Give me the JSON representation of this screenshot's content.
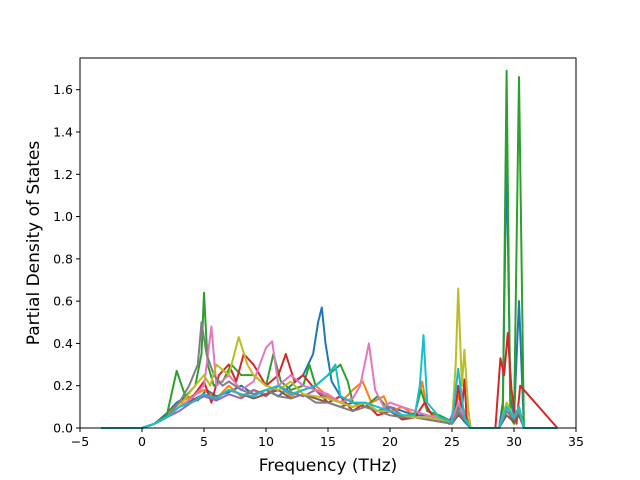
{
  "chart_data": {
    "type": "line",
    "xlabel": "Frequency (THz)",
    "ylabel": "Partial Density of States",
    "xlim": [
      -5,
      35
    ],
    "ylim": [
      0,
      1.75
    ],
    "xticks": [
      -5,
      0,
      5,
      10,
      15,
      20,
      25,
      30,
      35
    ],
    "yticks": [
      0.0,
      0.2,
      0.4,
      0.6,
      0.8,
      1.0,
      1.2,
      1.4,
      1.6
    ],
    "xtick_labels": [
      "−5",
      "0",
      "5",
      "10",
      "15",
      "20",
      "25",
      "30",
      "35"
    ],
    "ytick_labels": [
      "0.0",
      "0.2",
      "0.4",
      "0.6",
      "0.8",
      "1.0",
      "1.2",
      "1.4",
      "1.6"
    ],
    "grid": false,
    "legend": "none",
    "series": [
      {
        "color": "#1f77b4",
        "x": [
          -3.3,
          0,
          1.0,
          2.0,
          2.8,
          3.6,
          4.5,
          5.2,
          6.0,
          7.0,
          8.0,
          9.0,
          10.0,
          11.0,
          12.0,
          13.0,
          13.8,
          14.2,
          14.5,
          14.8,
          15.3,
          16.0,
          17.0,
          18.0,
          19.0,
          20.0,
          21.0,
          22.0,
          23.0,
          24.0,
          24.8,
          25.3,
          25.6,
          26.0,
          26.5,
          28.8,
          29.1,
          29.4,
          29.7,
          30.0,
          30.4,
          30.8,
          33.5
        ],
        "y": [
          0,
          0,
          0.02,
          0.07,
          0.12,
          0.15,
          0.13,
          0.18,
          0.15,
          0.17,
          0.2,
          0.16,
          0.18,
          0.15,
          0.2,
          0.25,
          0.35,
          0.5,
          0.57,
          0.4,
          0.22,
          0.15,
          0.12,
          0.1,
          0.08,
          0.1,
          0.08,
          0.06,
          0.06,
          0.04,
          0.02,
          0.12,
          0.06,
          0.03,
          0,
          0,
          0.12,
          1.3,
          0.15,
          0.05,
          0.6,
          0,
          0
        ]
      },
      {
        "color": "#ff7f0e",
        "x": [
          -3.3,
          0,
          1.0,
          2.0,
          3.0,
          4.0,
          5.0,
          6.0,
          7.0,
          8.0,
          9.0,
          10.0,
          11.0,
          12.0,
          13.0,
          14.0,
          15.0,
          16.0,
          17.0,
          17.8,
          18.5,
          19.5,
          20.0,
          21.0,
          22.0,
          22.6,
          23.0,
          24.0,
          25.0,
          25.5,
          26.0,
          26.5,
          28.8,
          29.4,
          30.0,
          30.4,
          30.8,
          33.5
        ],
        "y": [
          0,
          0,
          0.02,
          0.06,
          0.12,
          0.15,
          0.18,
          0.14,
          0.2,
          0.15,
          0.18,
          0.16,
          0.2,
          0.15,
          0.18,
          0.2,
          0.15,
          0.12,
          0.18,
          0.22,
          0.12,
          0.15,
          0.08,
          0.1,
          0.06,
          0.22,
          0.08,
          0.05,
          0.03,
          0.15,
          0.08,
          0,
          0,
          0.1,
          0.05,
          0.1,
          0,
          0
        ]
      },
      {
        "color": "#2ca02c",
        "x": [
          -3.3,
          0,
          1.0,
          2.0,
          2.8,
          3.5,
          4.3,
          4.8,
          5.0,
          5.3,
          5.8,
          6.5,
          7.2,
          8.0,
          9.0,
          10.0,
          10.6,
          11.2,
          12.0,
          13.0,
          13.5,
          14.0,
          15.0,
          16.0,
          16.6,
          17.0,
          18.0,
          19.0,
          20.0,
          21.0,
          22.0,
          22.5,
          23.0,
          24.0,
          25.0,
          25.5,
          26.0,
          26.5,
          28.8,
          29.1,
          29.4,
          29.7,
          30.0,
          30.4,
          30.8,
          33.5
        ],
        "y": [
          0,
          0,
          0.02,
          0.06,
          0.27,
          0.15,
          0.2,
          0.35,
          0.64,
          0.3,
          0.2,
          0.22,
          0.3,
          0.25,
          0.25,
          0.2,
          0.35,
          0.22,
          0.18,
          0.2,
          0.3,
          0.2,
          0.25,
          0.3,
          0.22,
          0.12,
          0.1,
          0.15,
          0.08,
          0.05,
          0.07,
          0.18,
          0.08,
          0.06,
          0.03,
          0.1,
          0.06,
          0,
          0,
          0.05,
          1.69,
          0.05,
          0.02,
          1.66,
          0,
          0
        ]
      },
      {
        "color": "#d62728",
        "x": [
          -3.3,
          0,
          1.0,
          2.0,
          3.0,
          4.0,
          5.0,
          5.6,
          6.2,
          7.0,
          7.6,
          8.2,
          9.0,
          10.0,
          11.0,
          11.6,
          12.3,
          13.0,
          14.0,
          15.0,
          16.0,
          17.0,
          18.0,
          19.0,
          20.0,
          21.0,
          22.0,
          22.8,
          23.5,
          24.5,
          25.2,
          25.5,
          25.8,
          26.0,
          26.2,
          26.5,
          28.5,
          28.9,
          29.2,
          29.5,
          29.8,
          30.2,
          30.5,
          33.5
        ],
        "y": [
          0,
          0,
          0.02,
          0.05,
          0.1,
          0.14,
          0.22,
          0.12,
          0.25,
          0.3,
          0.22,
          0.35,
          0.3,
          0.2,
          0.25,
          0.35,
          0.22,
          0.25,
          0.18,
          0.12,
          0.15,
          0.08,
          0.12,
          0.06,
          0.08,
          0.04,
          0.05,
          0.12,
          0.05,
          0.03,
          0.05,
          0.2,
          0.08,
          0.23,
          0.03,
          0,
          0,
          0.33,
          0.25,
          0.45,
          0.18,
          0.02,
          0.2,
          0
        ]
      },
      {
        "color": "#9467bd",
        "x": [
          -3.3,
          0,
          1.0,
          2.0,
          3.0,
          4.0,
          5.0,
          6.0,
          7.0,
          8.0,
          9.0,
          10.0,
          11.0,
          12.0,
          13.0,
          14.0,
          15.0,
          16.0,
          17.0,
          18.0,
          19.0,
          20.0,
          21.0,
          22.0,
          23.0,
          24.0,
          25.0,
          25.5,
          26.0,
          26.5,
          28.8,
          29.4,
          30.0,
          30.4,
          30.8,
          33.5
        ],
        "y": [
          0,
          0,
          0.02,
          0.05,
          0.08,
          0.12,
          0.15,
          0.13,
          0.16,
          0.14,
          0.18,
          0.15,
          0.2,
          0.17,
          0.15,
          0.18,
          0.14,
          0.12,
          0.1,
          0.12,
          0.08,
          0.1,
          0.06,
          0.05,
          0.05,
          0.04,
          0.03,
          0.08,
          0.05,
          0,
          0,
          0.08,
          0.04,
          0.08,
          0,
          0
        ]
      },
      {
        "color": "#8c564b",
        "x": [
          -3.3,
          0,
          1.0,
          2.0,
          3.0,
          4.0,
          5.0,
          6.0,
          7.0,
          8.0,
          9.0,
          10.0,
          11.0,
          12.0,
          13.0,
          14.0,
          15.0,
          16.0,
          17.0,
          18.0,
          19.0,
          20.0,
          21.0,
          22.0,
          23.0,
          24.0,
          25.0,
          25.5,
          26.0,
          26.5,
          28.8,
          29.4,
          30.0,
          30.4,
          30.8,
          33.5
        ],
        "y": [
          0,
          0,
          0.02,
          0.05,
          0.1,
          0.13,
          0.16,
          0.14,
          0.18,
          0.16,
          0.14,
          0.16,
          0.18,
          0.14,
          0.16,
          0.14,
          0.12,
          0.1,
          0.12,
          0.1,
          0.08,
          0.08,
          0.05,
          0.05,
          0.04,
          0.03,
          0.02,
          0.06,
          0.04,
          0,
          0,
          0.06,
          0.03,
          0.06,
          0,
          0
        ]
      },
      {
        "color": "#e377c2",
        "x": [
          -3.3,
          0,
          1.0,
          2.0,
          3.0,
          4.0,
          5.0,
          5.6,
          6.0,
          7.0,
          8.0,
          9.0,
          10.0,
          10.5,
          11.0,
          12.0,
          13.0,
          14.0,
          15.0,
          16.0,
          17.0,
          17.6,
          18.3,
          18.8,
          19.5,
          20.0,
          21.0,
          22.0,
          23.0,
          24.0,
          25.0,
          25.5,
          26.0,
          26.5,
          28.8,
          29.4,
          30.0,
          30.4,
          30.8,
          33.5
        ],
        "y": [
          0,
          0,
          0.02,
          0.05,
          0.1,
          0.14,
          0.2,
          0.48,
          0.2,
          0.25,
          0.18,
          0.22,
          0.38,
          0.41,
          0.2,
          0.25,
          0.2,
          0.18,
          0.16,
          0.12,
          0.14,
          0.2,
          0.4,
          0.18,
          0.1,
          0.12,
          0.1,
          0.08,
          0.06,
          0.05,
          0.03,
          0.12,
          0.05,
          0,
          0,
          0.1,
          0.05,
          0.1,
          0,
          0
        ]
      },
      {
        "color": "#7f7f7f",
        "x": [
          -3.3,
          0,
          1.0,
          2.0,
          3.0,
          3.8,
          4.5,
          4.8,
          5.2,
          5.8,
          6.5,
          7.0,
          8.0,
          9.0,
          10.0,
          11.0,
          12.0,
          13.0,
          14.0,
          15.0,
          16.0,
          17.0,
          18.0,
          19.0,
          20.0,
          21.0,
          22.0,
          23.0,
          24.0,
          25.0,
          25.5,
          26.0,
          26.5,
          28.8,
          29.4,
          30.0,
          30.4,
          30.8,
          33.5
        ],
        "y": [
          0,
          0,
          0.02,
          0.05,
          0.12,
          0.2,
          0.3,
          0.5,
          0.35,
          0.25,
          0.2,
          0.22,
          0.18,
          0.16,
          0.18,
          0.15,
          0.14,
          0.16,
          0.12,
          0.12,
          0.1,
          0.08,
          0.1,
          0.08,
          0.06,
          0.05,
          0.05,
          0.04,
          0.03,
          0.02,
          0.08,
          0.04,
          0,
          0,
          0.08,
          0.04,
          0.08,
          0,
          0
        ]
      },
      {
        "color": "#bcbd22",
        "x": [
          -3.3,
          0,
          1.0,
          2.0,
          3.0,
          4.0,
          5.0,
          5.5,
          6.0,
          7.0,
          7.8,
          8.5,
          9.0,
          10.0,
          11.0,
          12.0,
          13.0,
          14.0,
          15.0,
          16.0,
          17.0,
          18.0,
          19.0,
          20.0,
          21.0,
          22.0,
          23.0,
          24.0,
          25.0,
          25.3,
          25.5,
          25.8,
          26.0,
          26.3,
          26.5,
          28.8,
          29.4,
          30.0,
          30.4,
          30.8,
          33.5
        ],
        "y": [
          0,
          0,
          0.02,
          0.05,
          0.1,
          0.18,
          0.25,
          0.2,
          0.3,
          0.25,
          0.43,
          0.3,
          0.25,
          0.2,
          0.18,
          0.22,
          0.16,
          0.15,
          0.14,
          0.12,
          0.1,
          0.12,
          0.08,
          0.08,
          0.06,
          0.05,
          0.05,
          0.04,
          0.03,
          0.3,
          0.66,
          0.2,
          0.37,
          0.1,
          0,
          0,
          0.12,
          0.05,
          0.1,
          0,
          0
        ]
      },
      {
        "color": "#17becf",
        "x": [
          -3.3,
          0,
          1.0,
          2.0,
          3.0,
          4.0,
          5.0,
          6.0,
          7.0,
          8.0,
          9.0,
          10.0,
          11.0,
          12.0,
          13.0,
          14.0,
          15.0,
          15.6,
          16.0,
          17.0,
          18.0,
          19.0,
          20.0,
          21.0,
          22.0,
          22.4,
          22.7,
          23.0,
          24.0,
          25.0,
          25.5,
          26.0,
          26.5,
          28.8,
          29.4,
          30.0,
          30.4,
          30.8,
          33.5
        ],
        "y": [
          0,
          0,
          0.02,
          0.05,
          0.1,
          0.12,
          0.16,
          0.14,
          0.18,
          0.16,
          0.15,
          0.18,
          0.2,
          0.16,
          0.18,
          0.2,
          0.25,
          0.3,
          0.15,
          0.12,
          0.12,
          0.1,
          0.08,
          0.06,
          0.06,
          0.2,
          0.44,
          0.12,
          0.05,
          0.03,
          0.28,
          0.05,
          0,
          0,
          0.1,
          0.05,
          0.1,
          0,
          0
        ]
      }
    ]
  }
}
